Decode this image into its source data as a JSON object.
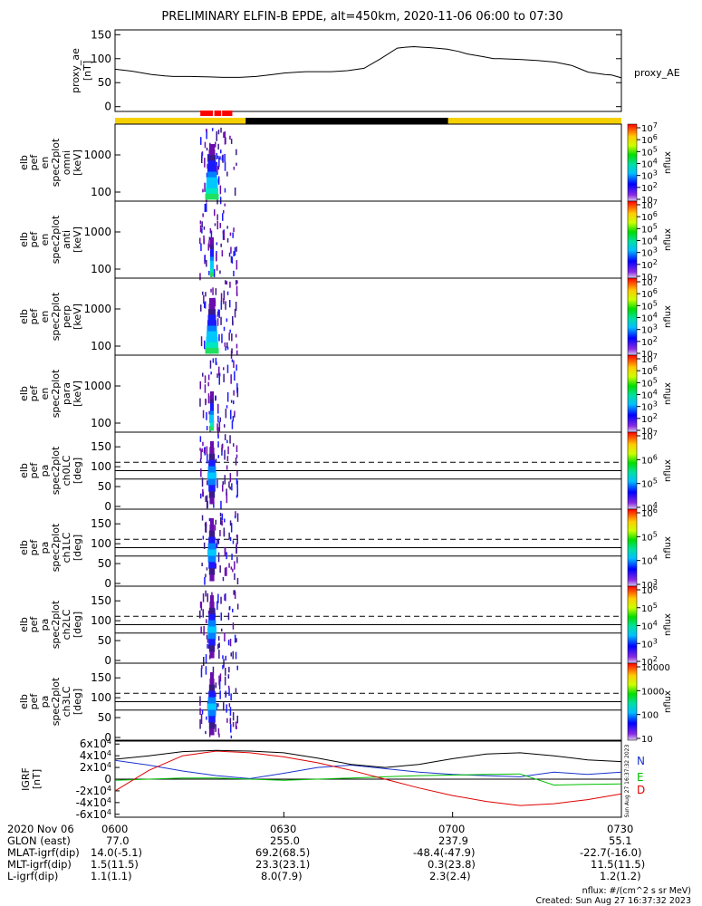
{
  "title": "PRELIMINARY ELFIN-B EPDE, alt=450km, 2020-11-06 06:00 to 07:30",
  "footer": {
    "units": "nflux: #/(cm^2 s sr MeV)",
    "created": "Created: Sun Aug 27 16:37:32 2023",
    "side_stamp": "Sun Aug 27 16:37:32 2023"
  },
  "time_axis": {
    "date_label": "2020 Nov 06",
    "ticks": [
      "0600",
      "0630",
      "0700",
      "0730"
    ],
    "rows": [
      {
        "label": "GLON (east)",
        "values": [
          "77.0",
          "255.0",
          "237.9",
          "55.1"
        ]
      },
      {
        "label": "MLAT-igrf(dip)",
        "values": [
          "14.0(-5.1)",
          "69.2(68.5)",
          "-48.4(-47.9)",
          "-22.7(-16.0)"
        ]
      },
      {
        "label": "MLT-igrf(dip)",
        "values": [
          "1.5(11.5)",
          "23.3(23.1)",
          "0.3(23.8)",
          "11.5(11.5)"
        ]
      },
      {
        "label": "L-igrf(dip)",
        "values": [
          "1.1(1.1)",
          "8.0(7.9)",
          "2.3(2.4)",
          "1.2(1.2)"
        ]
      }
    ]
  },
  "chart_data": [
    {
      "type": "line",
      "panel": "proxy_ae",
      "ylabel": [
        "proxy_ae",
        "[nT]"
      ],
      "legend": "proxy_AE",
      "yticks": [
        "0",
        "50",
        "100",
        "150"
      ],
      "ylim": [
        -10,
        160
      ],
      "x_minutes": [
        0,
        10,
        22,
        30,
        35,
        45,
        57,
        65,
        75,
        85,
        95,
        102,
        110,
        115,
        125,
        130,
        140,
        150,
        160,
        170,
        175,
        180,
        185,
        190,
        200,
        207,
        212,
        222,
        228,
        232,
        245,
        255,
        265,
        275,
        285,
        295,
        299,
        305
      ],
      "y_values": [
        78,
        74,
        67,
        64,
        63,
        63,
        62,
        61,
        61,
        63,
        67,
        70,
        72,
        73,
        73,
        73,
        75,
        80,
        100,
        122,
        124,
        125,
        124,
        123,
        120,
        115,
        110,
        104,
        100,
        100,
        98,
        96,
        93,
        86,
        72,
        67,
        66,
        60
      ],
      "x_range_minutes": [
        0,
        305
      ]
    },
    {
      "type": "bar",
      "panel": "science-zone-bar",
      "segments": [
        {
          "start_min": 0,
          "end_min": 49,
          "color": "#f5d000"
        },
        {
          "start_min": 49,
          "end_min": 125,
          "color": "#000000"
        },
        {
          "start_min": 125,
          "end_min": 190,
          "color": "#f5d000"
        }
      ],
      "markers": [
        {
          "start_min": 32,
          "end_min": 44,
          "color": "#ff0000"
        }
      ]
    },
    {
      "type": "heatmap",
      "panel": "en_omni",
      "ylabel": [
        "elb",
        "pef",
        "en",
        "spec2plot",
        "omni",
        "[keV]"
      ],
      "yticks": [
        "100",
        "1000"
      ],
      "colorbar": {
        "label": "nflux",
        "ticks": [
          "10",
          "10^2",
          "10^3",
          "10^4",
          "10^5",
          "10^6",
          "10^7"
        ]
      }
    },
    {
      "type": "heatmap",
      "panel": "en_anti",
      "ylabel": [
        "elb",
        "pef",
        "en",
        "spec2plot",
        "anti",
        "[keV]"
      ],
      "yticks": [
        "100",
        "1000"
      ],
      "colorbar": {
        "label": "nflux",
        "ticks": [
          "10",
          "10^2",
          "10^3",
          "10^4",
          "10^5",
          "10^6",
          "10^7"
        ]
      }
    },
    {
      "type": "heatmap",
      "panel": "en_perp",
      "ylabel": [
        "elb",
        "pef",
        "en",
        "spec2plot",
        "perp",
        "[keV]"
      ],
      "yticks": [
        "100",
        "1000"
      ],
      "colorbar": {
        "label": "nflux",
        "ticks": [
          "10",
          "10^2",
          "10^3",
          "10^4",
          "10^5",
          "10^6",
          "10^7"
        ]
      }
    },
    {
      "type": "heatmap",
      "panel": "en_para",
      "ylabel": [
        "elb",
        "pef",
        "en",
        "spec2plot",
        "para",
        "[keV]"
      ],
      "yticks": [
        "100",
        "1000"
      ],
      "colorbar": {
        "label": "nflux",
        "ticks": [
          "10",
          "10^2",
          "10^3",
          "10^4",
          "10^5",
          "10^6",
          "10^7"
        ]
      }
    },
    {
      "type": "heatmap",
      "panel": "pa_ch0LC",
      "ylabel": [
        "elb",
        "pef",
        "pa",
        "spec2plot",
        "ch0LC",
        "[deg]"
      ],
      "yticks": [
        "0",
        "50",
        "100",
        "150"
      ],
      "colorbar": {
        "label": "nflux",
        "ticks": [
          "10^4",
          "10^5",
          "10^6",
          "10^7"
        ]
      }
    },
    {
      "type": "heatmap",
      "panel": "pa_ch1LC",
      "ylabel": [
        "elb",
        "pef",
        "pa",
        "spec2plot",
        "ch1LC",
        "[deg]"
      ],
      "yticks": [
        "0",
        "50",
        "100",
        "150"
      ],
      "colorbar": {
        "label": "nflux",
        "ticks": [
          "10^3",
          "10^4",
          "10^5",
          "10^6"
        ]
      }
    },
    {
      "type": "heatmap",
      "panel": "pa_ch2LC",
      "ylabel": [
        "elb",
        "pef",
        "pa",
        "spec2plot",
        "ch2LC",
        "[deg]"
      ],
      "yticks": [
        "0",
        "50",
        "100",
        "150"
      ],
      "colorbar": {
        "label": "nflux",
        "ticks": [
          "10^2",
          "10^3",
          "10^4",
          "10^5",
          "10^6"
        ]
      }
    },
    {
      "type": "heatmap",
      "panel": "pa_ch3LC",
      "ylabel": [
        "elb",
        "pef",
        "pa",
        "spec2plot",
        "ch3LC",
        "[deg]"
      ],
      "yticks": [
        "0",
        "50",
        "100",
        "150"
      ],
      "colorbar": {
        "label": "nflux",
        "ticks": [
          "10",
          "100",
          "1000",
          "10000"
        ]
      }
    },
    {
      "type": "line",
      "panel": "igrf",
      "ylabel": [
        "IGRF",
        "[nT]"
      ],
      "yticks": [
        "-6x10^4",
        "-4x10^4",
        "-2x10^4",
        "0",
        "2x10^4",
        "4x10^4",
        "6x10^4"
      ],
      "ylim": [
        -65000,
        65000
      ],
      "x_range_minutes": [
        0,
        90
      ],
      "series": [
        {
          "name": "N",
          "color": "#1a33cc",
          "x_minutes": [
            0,
            6,
            12,
            18,
            24,
            30,
            36,
            42,
            48,
            54,
            60,
            66,
            72,
            78,
            84,
            90
          ],
          "values": [
            32000,
            24000,
            14000,
            6000,
            1000,
            10000,
            20000,
            24000,
            18000,
            12000,
            8000,
            6000,
            4000,
            12000,
            8000,
            12000
          ]
        },
        {
          "name": "E",
          "color": "#00c000",
          "x_minutes": [
            0,
            6,
            12,
            18,
            24,
            30,
            36,
            42,
            48,
            54,
            60,
            66,
            72,
            78,
            84,
            90
          ],
          "values": [
            -2000,
            0,
            2000,
            2000,
            0,
            -2000,
            0,
            2000,
            4000,
            6000,
            7000,
            8000,
            9000,
            -10000,
            -9000,
            -8000
          ]
        },
        {
          "name": "D",
          "color": "#e00000",
          "x_minutes": [
            0,
            6,
            12,
            18,
            24,
            30,
            36,
            42,
            48,
            54,
            60,
            66,
            72,
            78,
            84,
            90
          ],
          "values": [
            -20000,
            15000,
            40000,
            48000,
            45000,
            38000,
            28000,
            15000,
            0,
            -15000,
            -28000,
            -38000,
            -45000,
            -42000,
            -35000,
            -25000
          ]
        },
        {
          "color": "#000000",
          "x_minutes": [
            0,
            6,
            12,
            18,
            24,
            30,
            36,
            42,
            48,
            54,
            60,
            66,
            72,
            78,
            84,
            90
          ],
          "values": [
            34000,
            40000,
            47000,
            49000,
            48000,
            45000,
            36000,
            25000,
            20000,
            25000,
            35000,
            43000,
            45000,
            40000,
            33000,
            30000
          ]
        }
      ]
    }
  ]
}
